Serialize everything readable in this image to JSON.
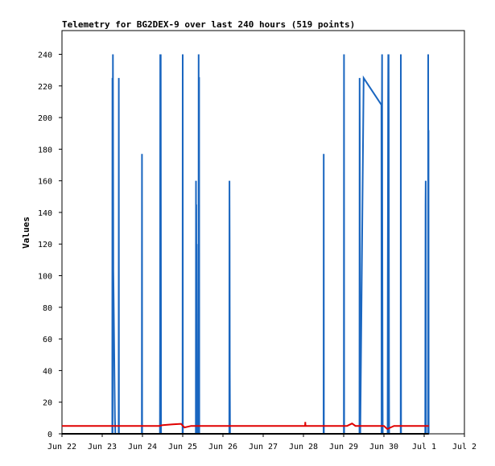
{
  "chart_data": {
    "type": "line",
    "title": "Telemetry for BG2DEX-9 over last 240 hours (519 points)",
    "xlabel": "",
    "ylabel": "Values",
    "ylim": [
      0,
      255
    ],
    "xlim": [
      "2023-06-22 00:00",
      "2023-07-02 00:00"
    ],
    "x_tick_labels": [
      "Jun 22",
      "Jun 23",
      "Jun 24",
      "Jun 25",
      "Jun 26",
      "Jun 27",
      "Jun 28",
      "Jun 29",
      "Jun 30",
      "Jul 1",
      "Jul 2"
    ],
    "y_ticks": [
      0,
      20,
      40,
      60,
      80,
      100,
      120,
      140,
      160,
      180,
      200,
      220,
      240
    ],
    "grid": false,
    "legend": "none",
    "colors": {
      "series1": "#1a66c0",
      "series2": "#e00000",
      "series3": "#000000"
    },
    "series": [
      {
        "values": [
          [
            "2023-06-23 06:00",
            0
          ],
          [
            "2023-06-23 06:06",
            225
          ],
          [
            "2023-06-23 06:12",
            0
          ],
          [
            "2023-06-23 06:24",
            240
          ],
          [
            "2023-06-23 06:36",
            103
          ],
          [
            "2023-06-23 06:48",
            85
          ],
          [
            "2023-06-23 07:00",
            66
          ],
          [
            "2023-06-23 07:12",
            47
          ],
          [
            "2023-06-23 07:24",
            28
          ],
          [
            "2023-06-23 07:36",
            10
          ],
          [
            "2023-06-23 07:48",
            0
          ],
          [
            "2023-06-23 09:48",
            0
          ],
          [
            "2023-06-23 09:54",
            225
          ],
          [
            "2023-06-23 10:00",
            0
          ],
          [
            "2023-06-23 23:36",
            0
          ],
          [
            "2023-06-23 23:42",
            177
          ],
          [
            "2023-06-23 23:48",
            0
          ],
          [
            "2023-06-24 10:24",
            0
          ],
          [
            "2023-06-24 10:30",
            64
          ],
          [
            "2023-06-24 10:36",
            240
          ],
          [
            "2023-06-24 10:48",
            0
          ],
          [
            "2023-06-24 10:54",
            240
          ],
          [
            "2023-06-24 11:06",
            0
          ],
          [
            "2023-06-24 23:54",
            0
          ],
          [
            "2023-06-25 00:00",
            240
          ],
          [
            "2023-06-25 00:06",
            0
          ],
          [
            "2023-06-25 07:48",
            0
          ],
          [
            "2023-06-25 07:54",
            160
          ],
          [
            "2023-06-25 08:00",
            0
          ],
          [
            "2023-06-25 08:06",
            145
          ],
          [
            "2023-06-25 08:12",
            0
          ],
          [
            "2023-06-25 08:18",
            120
          ],
          [
            "2023-06-25 08:24",
            73
          ],
          [
            "2023-06-25 08:30",
            25
          ],
          [
            "2023-06-25 08:36",
            0
          ],
          [
            "2023-06-25 09:24",
            0
          ],
          [
            "2023-06-25 09:30",
            240
          ],
          [
            "2023-06-25 09:36",
            0
          ],
          [
            "2023-06-25 09:42",
            225
          ],
          [
            "2023-06-25 09:48",
            225
          ],
          [
            "2023-06-25 09:54",
            0
          ],
          [
            "2023-06-26 03:48",
            0
          ],
          [
            "2023-06-26 03:54",
            160
          ],
          [
            "2023-06-26 04:00",
            120
          ],
          [
            "2023-06-26 04:06",
            40
          ],
          [
            "2023-06-26 04:12",
            0
          ],
          [
            "2023-06-28 12:00",
            0
          ],
          [
            "2023-06-28 12:06",
            177
          ],
          [
            "2023-06-28 12:12",
            0
          ],
          [
            "2023-06-29 00:06",
            0
          ],
          [
            "2023-06-29 00:12",
            240
          ],
          [
            "2023-06-29 00:18",
            0
          ],
          [
            "2023-06-29 09:24",
            0
          ],
          [
            "2023-06-29 09:30",
            225
          ],
          [
            "2023-06-29 09:36",
            192
          ],
          [
            "2023-06-29 09:42",
            96
          ],
          [
            "2023-06-29 09:48",
            32
          ],
          [
            "2023-06-29 09:54",
            0
          ],
          [
            "2023-06-29 11:54",
            225
          ],
          [
            "2023-06-29 22:30",
            208
          ],
          [
            "2023-06-29 22:36",
            0
          ],
          [
            "2023-06-29 22:42",
            120
          ],
          [
            "2023-06-29 22:48",
            210
          ],
          [
            "2023-06-29 22:54",
            240
          ],
          [
            "2023-06-29 23:00",
            150
          ],
          [
            "2023-06-29 23:06",
            90
          ],
          [
            "2023-06-29 23:12",
            30
          ],
          [
            "2023-06-29 23:18",
            0
          ],
          [
            "2023-06-30 02:12",
            0
          ],
          [
            "2023-06-30 02:18",
            100
          ],
          [
            "2023-06-30 02:24",
            150
          ],
          [
            "2023-06-30 02:30",
            210
          ],
          [
            "2023-06-30 02:36",
            240
          ],
          [
            "2023-06-30 02:42",
            0
          ],
          [
            "2023-06-30 02:48",
            240
          ],
          [
            "2023-06-30 02:54",
            200
          ],
          [
            "2023-06-30 03:00",
            40
          ],
          [
            "2023-06-30 03:06",
            0
          ],
          [
            "2023-06-30 10:00",
            0
          ],
          [
            "2023-06-30 10:06",
            240
          ],
          [
            "2023-06-30 10:12",
            0
          ],
          [
            "2023-07-01 00:36",
            0
          ],
          [
            "2023-07-01 00:42",
            80
          ],
          [
            "2023-07-01 00:48",
            145
          ],
          [
            "2023-07-01 00:54",
            160
          ],
          [
            "2023-07-01 01:00",
            0
          ],
          [
            "2023-07-01 02:18",
            0
          ],
          [
            "2023-07-01 02:24",
            240
          ],
          [
            "2023-07-01 02:30",
            97
          ],
          [
            "2023-07-01 02:36",
            192
          ],
          [
            "2023-07-01 02:42",
            0
          ]
        ]
      },
      {
        "values": [
          [
            "2023-06-22 00:00",
            5
          ],
          [
            "2023-06-24 10:00",
            5
          ],
          [
            "2023-06-24 12:00",
            5.5
          ],
          [
            "2023-06-24 18:00",
            6
          ],
          [
            "2023-06-24 23:00",
            6.3
          ],
          [
            "2023-06-25 01:00",
            4
          ],
          [
            "2023-06-25 03:00",
            4.5
          ],
          [
            "2023-06-25 05:00",
            5
          ],
          [
            "2023-06-28 01:00",
            5
          ],
          [
            "2023-06-28 01:06",
            7.5
          ],
          [
            "2023-06-28 01:12",
            5
          ],
          [
            "2023-06-29 02:00",
            5
          ],
          [
            "2023-06-29 05:00",
            6.5
          ],
          [
            "2023-06-29 07:00",
            5
          ],
          [
            "2023-06-30 00:00",
            5
          ],
          [
            "2023-06-30 02:00",
            3
          ],
          [
            "2023-06-30 04:00",
            4
          ],
          [
            "2023-06-30 06:00",
            5
          ],
          [
            "2023-07-01 02:48",
            5
          ]
        ]
      },
      {
        "values": [
          [
            "2023-06-22 00:00",
            0
          ],
          [
            "2023-07-01 02:48",
            0
          ]
        ]
      }
    ]
  }
}
